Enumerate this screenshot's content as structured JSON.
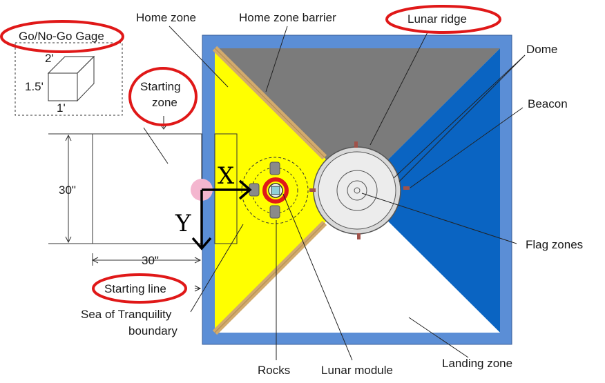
{
  "labels": {
    "gage": "Go/No-Go Gage",
    "gage_dim_top": "2'",
    "gage_dim_side": "1.5'",
    "gage_dim_bottom": "1'",
    "home_zone": "Home zone",
    "home_zone_barrier": "Home zone barrier",
    "lunar_ridge": "Lunar ridge",
    "dome": "Dome",
    "beacon": "Beacon",
    "starting_zone_line1": "Starting",
    "starting_zone_line2": "zone",
    "dim_30_vertical": "30\"",
    "dim_30_horizontal": "30\"",
    "starting_line": "Starting line",
    "sea_boundary_line1": "Sea of Tranquility",
    "sea_boundary_line2": "boundary",
    "rocks": "Rocks",
    "lunar_module": "Lunar module",
    "landing_zone": "Landing zone",
    "flag_zones": "Flag zones"
  },
  "axes": {
    "x": "X",
    "y": "Y"
  },
  "highlighted_labels": [
    "gage",
    "lunar_ridge",
    "starting_zone",
    "starting_line"
  ],
  "colors": {
    "field_border": "#5b8ed6",
    "home_zone": "#ffff00",
    "lunar_ridge": "#7b7b7b",
    "dark_zone": "#0a64c2",
    "barrier": "#d2aa6c",
    "highlight": "#e01818",
    "origin_marker": "#f4b6cf"
  }
}
